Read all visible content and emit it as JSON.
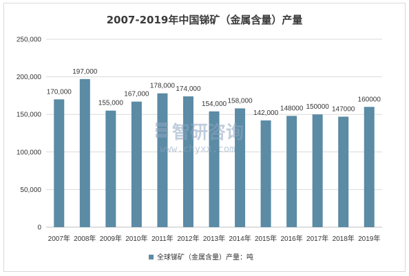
{
  "chart_data": {
    "type": "bar",
    "title": "2007-2019年中国锑矿（金属含量）产量",
    "categories": [
      "2007年",
      "2008年",
      "2009年",
      "2010年",
      "2011年",
      "2012年",
      "2013年",
      "2014年",
      "2015年",
      "2016年",
      "2017年",
      "2018年",
      "2019年"
    ],
    "series": [
      {
        "name": "全球锑矿（金属含量）产量：吨",
        "values": [
          170000,
          197000,
          155000,
          167000,
          178000,
          174000,
          154000,
          158000,
          142000,
          148000,
          150000,
          147000,
          160000
        ],
        "value_labels": [
          "170,000",
          "197,000",
          "155,000",
          "167,000",
          "178,000",
          "174,000",
          "154,000",
          "158,000",
          "142,000",
          "148000",
          "150000",
          "147000",
          "160000"
        ]
      }
    ],
    "y_ticks": [
      "0",
      "50,000",
      "100,000",
      "150,000",
      "200,000",
      "250,000"
    ],
    "ylim": [
      0,
      250000
    ],
    "grid": true,
    "legend_position": "bottom",
    "bar_color": "#5b8ba5",
    "grid_color": "#d9d9d9"
  },
  "watermark": {
    "brand_text": "智研咨询",
    "url_text": "www.chyxx.com"
  }
}
